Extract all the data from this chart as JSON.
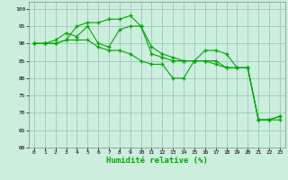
{
  "xlabel": "Humidité relative (%)",
  "x": [
    0,
    1,
    2,
    3,
    4,
    5,
    6,
    7,
    8,
    9,
    10,
    11,
    12,
    13,
    14,
    15,
    16,
    17,
    18,
    19,
    20,
    21,
    22,
    23
  ],
  "line1": [
    90,
    90,
    90,
    91,
    95,
    96,
    96,
    97,
    97,
    98,
    95,
    89,
    87,
    86,
    85,
    85,
    88,
    88,
    87,
    83,
    83,
    68,
    68,
    68
  ],
  "line2": [
    90,
    90,
    91,
    93,
    92,
    95,
    90,
    89,
    94,
    95,
    95,
    87,
    86,
    85,
    85,
    85,
    85,
    85,
    83,
    83,
    83,
    68,
    68,
    69
  ],
  "line3": [
    90,
    90,
    90,
    91,
    91,
    91,
    89,
    88,
    88,
    87,
    85,
    84,
    84,
    80,
    80,
    85,
    85,
    84,
    83,
    83,
    83,
    68,
    68,
    69
  ],
  "line_color": "#00aa00",
  "bg_color": "#cceedd",
  "grid_color": "#99bbbb",
  "xlim": [
    -0.5,
    23.5
  ],
  "ylim": [
    60,
    102
  ],
  "yticks": [
    60,
    65,
    70,
    75,
    80,
    85,
    90,
    95,
    100
  ],
  "xticks": [
    0,
    1,
    2,
    3,
    4,
    5,
    6,
    7,
    8,
    9,
    10,
    11,
    12,
    13,
    14,
    15,
    16,
    17,
    18,
    19,
    20,
    21,
    22,
    23
  ]
}
